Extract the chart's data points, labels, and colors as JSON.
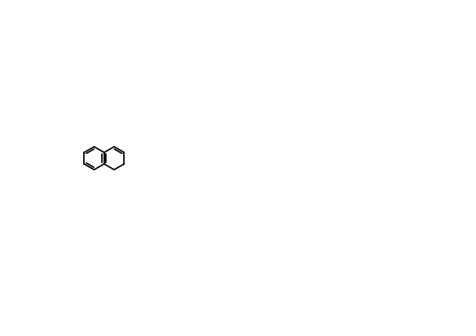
{
  "bg_color": "#ffffff",
  "line_color": "#000000",
  "figsize": [
    6.07,
    4.28
  ],
  "dpi": 100,
  "lw": 1.3
}
